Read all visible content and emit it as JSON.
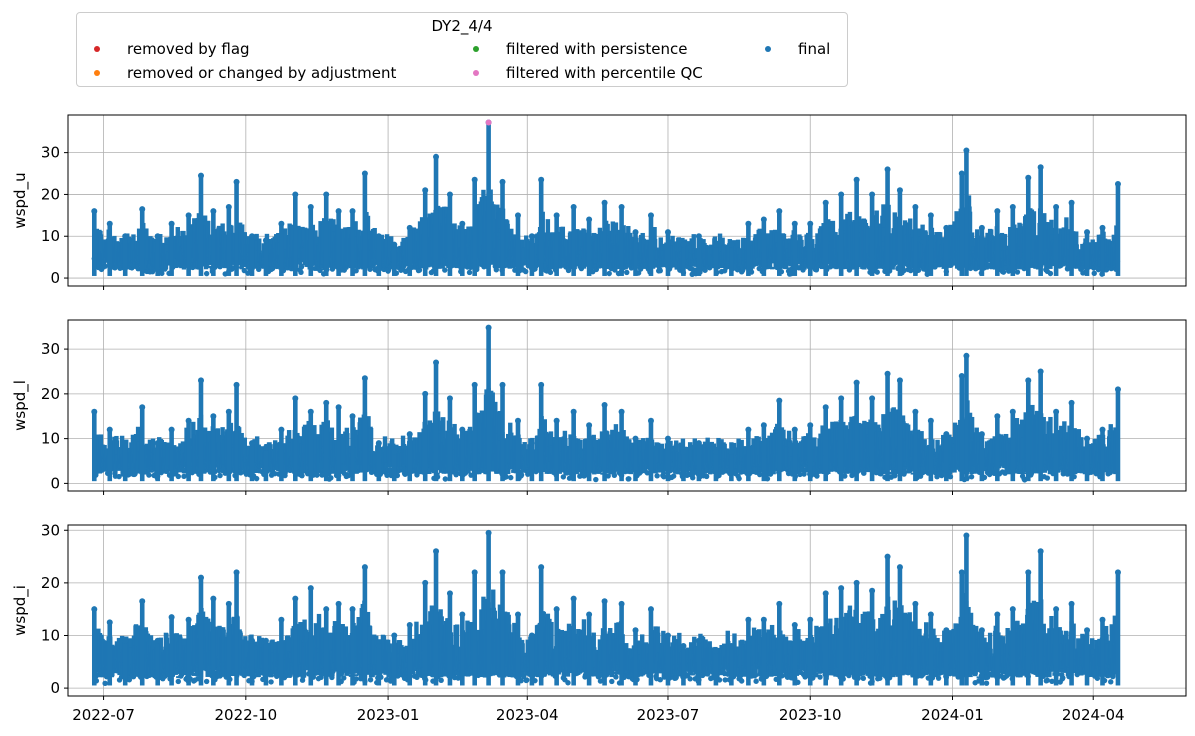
{
  "legend": {
    "title": "DY2_4/4",
    "items": [
      {
        "label": "removed by flag",
        "color": "#d62728"
      },
      {
        "label": "removed or changed by adjustment",
        "color": "#ff7f0e"
      },
      {
        "label": "filtered with persistence",
        "color": "#2ca02c"
      },
      {
        "label": "filtered with percentile QC",
        "color": "#e377c2"
      },
      {
        "label": "final",
        "color": "#1f77b4"
      }
    ]
  },
  "chart_data": [
    {
      "type": "scatter",
      "ylabel": "wspd_u",
      "xlim": [
        "2022-06-08",
        "2024-05-31"
      ],
      "ylim": [
        -1.9,
        39
      ],
      "yticks": [
        0,
        10,
        20,
        30
      ],
      "grid": true,
      "series": [
        {
          "name": "final",
          "color": "#1f77b4",
          "values": [
            [
              "2022-06-25",
              16
            ],
            [
              "2022-07-05",
              13
            ],
            [
              "2022-07-15",
              10
            ],
            [
              "2022-07-26",
              16.5
            ],
            [
              "2022-08-05",
              10
            ],
            [
              "2022-08-14",
              13
            ],
            [
              "2022-08-25",
              15
            ],
            [
              "2022-09-02",
              24.5
            ],
            [
              "2022-09-10",
              16
            ],
            [
              "2022-09-20",
              17
            ],
            [
              "2022-09-25",
              23
            ],
            [
              "2022-10-05",
              10
            ],
            [
              "2022-10-14",
              9
            ],
            [
              "2022-10-24",
              13
            ],
            [
              "2022-11-02",
              20
            ],
            [
              "2022-11-12",
              17
            ],
            [
              "2022-11-22",
              20
            ],
            [
              "2022-11-30",
              16
            ],
            [
              "2022-12-09",
              16
            ],
            [
              "2022-12-17",
              25
            ],
            [
              "2022-12-26",
              10
            ],
            [
              "2023-01-05",
              8
            ],
            [
              "2023-01-15",
              12
            ],
            [
              "2023-01-25",
              21
            ],
            [
              "2023-02-01",
              29
            ],
            [
              "2023-02-10",
              20
            ],
            [
              "2023-02-18",
              13
            ],
            [
              "2023-02-26",
              23.5
            ],
            [
              "2023-03-07",
              37.2
            ],
            [
              "2023-03-16",
              23
            ],
            [
              "2023-03-26",
              15
            ],
            [
              "2023-04-04",
              10
            ],
            [
              "2023-04-10",
              23.5
            ],
            [
              "2023-04-20",
              15
            ],
            [
              "2023-05-01",
              17
            ],
            [
              "2023-05-11",
              14
            ],
            [
              "2023-05-21",
              18
            ],
            [
              "2023-06-01",
              17
            ],
            [
              "2023-06-10",
              11
            ],
            [
              "2023-06-20",
              15
            ],
            [
              "2023-07-01",
              11
            ],
            [
              "2023-07-11",
              8
            ],
            [
              "2023-07-21",
              10
            ],
            [
              "2023-08-01",
              8
            ],
            [
              "2023-08-11",
              8
            ],
            [
              "2023-08-22",
              13
            ],
            [
              "2023-09-01",
              14
            ],
            [
              "2023-09-11",
              16
            ],
            [
              "2023-09-21",
              13
            ],
            [
              "2023-10-01",
              13
            ],
            [
              "2023-10-11",
              18
            ],
            [
              "2023-10-21",
              20
            ],
            [
              "2023-10-31",
              23.5
            ],
            [
              "2023-11-10",
              20
            ],
            [
              "2023-11-20",
              26
            ],
            [
              "2023-11-28",
              21
            ],
            [
              "2023-12-08",
              17
            ],
            [
              "2023-12-18",
              15
            ],
            [
              "2023-12-28",
              12
            ],
            [
              "2024-01-07",
              25
            ],
            [
              "2024-01-10",
              30.5
            ],
            [
              "2024-01-20",
              12
            ],
            [
              "2024-01-30",
              16
            ],
            [
              "2024-02-09",
              17
            ],
            [
              "2024-02-19",
              24
            ],
            [
              "2024-02-27",
              26.5
            ],
            [
              "2024-03-08",
              17
            ],
            [
              "2024-03-18",
              18
            ],
            [
              "2024-03-28",
              11
            ],
            [
              "2024-04-07",
              12
            ],
            [
              "2024-04-17",
              22.5
            ]
          ]
        },
        {
          "name": "filtered with percentile QC",
          "color": "#e377c2",
          "values": [
            [
              "2023-03-07",
              37.2
            ]
          ]
        }
      ]
    },
    {
      "type": "scatter",
      "ylabel": "wspd_l",
      "xlim": [
        "2022-06-08",
        "2024-05-31"
      ],
      "ylim": [
        -1.7,
        36.5
      ],
      "yticks": [
        0,
        10,
        20,
        30
      ],
      "grid": true,
      "series": [
        {
          "name": "final",
          "color": "#1f77b4",
          "values": [
            [
              "2022-06-25",
              16
            ],
            [
              "2022-07-05",
              12
            ],
            [
              "2022-07-15",
              9
            ],
            [
              "2022-07-26",
              17
            ],
            [
              "2022-08-05",
              9
            ],
            [
              "2022-08-14",
              12
            ],
            [
              "2022-08-25",
              14
            ],
            [
              "2022-09-02",
              23
            ],
            [
              "2022-09-10",
              15
            ],
            [
              "2022-09-20",
              16
            ],
            [
              "2022-09-25",
              22
            ],
            [
              "2022-10-05",
              9
            ],
            [
              "2022-10-14",
              8
            ],
            [
              "2022-10-24",
              12
            ],
            [
              "2022-11-02",
              19
            ],
            [
              "2022-11-12",
              16
            ],
            [
              "2022-11-22",
              18
            ],
            [
              "2022-11-30",
              17
            ],
            [
              "2022-12-09",
              15
            ],
            [
              "2022-12-17",
              23.5
            ],
            [
              "2022-12-26",
              9
            ],
            [
              "2023-01-05",
              7
            ],
            [
              "2023-01-15",
              11
            ],
            [
              "2023-01-25",
              20
            ],
            [
              "2023-02-01",
              27
            ],
            [
              "2023-02-10",
              19
            ],
            [
              "2023-02-18",
              12
            ],
            [
              "2023-02-26",
              22
            ],
            [
              "2023-03-07",
              34.8
            ],
            [
              "2023-03-16",
              22
            ],
            [
              "2023-03-26",
              14
            ],
            [
              "2023-04-04",
              9
            ],
            [
              "2023-04-10",
              22
            ],
            [
              "2023-04-20",
              14
            ],
            [
              "2023-05-01",
              16
            ],
            [
              "2023-05-11",
              13
            ],
            [
              "2023-05-21",
              17.5
            ],
            [
              "2023-06-01",
              16
            ],
            [
              "2023-06-10",
              10
            ],
            [
              "2023-06-20",
              14
            ],
            [
              "2023-07-01",
              10
            ],
            [
              "2023-07-11",
              7
            ],
            [
              "2023-07-21",
              9
            ],
            [
              "2023-08-01",
              7
            ],
            [
              "2023-08-11",
              7
            ],
            [
              "2023-08-22",
              12
            ],
            [
              "2023-09-01",
              13
            ],
            [
              "2023-09-11",
              18.5
            ],
            [
              "2023-09-21",
              12
            ],
            [
              "2023-10-01",
              13
            ],
            [
              "2023-10-11",
              17
            ],
            [
              "2023-10-21",
              19
            ],
            [
              "2023-10-31",
              22.5
            ],
            [
              "2023-11-10",
              19
            ],
            [
              "2023-11-20",
              24.5
            ],
            [
              "2023-11-28",
              23
            ],
            [
              "2023-12-08",
              16
            ],
            [
              "2023-12-18",
              14
            ],
            [
              "2023-12-28",
              11
            ],
            [
              "2024-01-07",
              24
            ],
            [
              "2024-01-10",
              28.5
            ],
            [
              "2024-01-20",
              11
            ],
            [
              "2024-01-30",
              15
            ],
            [
              "2024-02-09",
              16
            ],
            [
              "2024-02-19",
              23
            ],
            [
              "2024-02-27",
              25
            ],
            [
              "2024-03-08",
              16
            ],
            [
              "2024-03-18",
              18
            ],
            [
              "2024-03-28",
              10
            ],
            [
              "2024-04-07",
              12
            ],
            [
              "2024-04-17",
              21
            ]
          ]
        }
      ]
    },
    {
      "type": "scatter",
      "ylabel": "wspd_i",
      "xlim": [
        "2022-06-08",
        "2024-05-31"
      ],
      "ylim": [
        -1.5,
        31
      ],
      "yticks": [
        0,
        10,
        20,
        30
      ],
      "grid": true,
      "series": [
        {
          "name": "final",
          "color": "#1f77b4",
          "values": [
            [
              "2022-06-25",
              15
            ],
            [
              "2022-07-05",
              12.5
            ],
            [
              "2022-07-15",
              9
            ],
            [
              "2022-07-26",
              16.5
            ],
            [
              "2022-08-05",
              9
            ],
            [
              "2022-08-14",
              13.5
            ],
            [
              "2022-08-25",
              13
            ],
            [
              "2022-09-02",
              21
            ],
            [
              "2022-09-10",
              17
            ],
            [
              "2022-09-20",
              16
            ],
            [
              "2022-09-25",
              22
            ],
            [
              "2022-10-05",
              9
            ],
            [
              "2022-10-14",
              9
            ],
            [
              "2022-10-24",
              13
            ],
            [
              "2022-11-02",
              17
            ],
            [
              "2022-11-12",
              19
            ],
            [
              "2022-11-22",
              15
            ],
            [
              "2022-11-30",
              16
            ],
            [
              "2022-12-09",
              15
            ],
            [
              "2022-12-17",
              23
            ],
            [
              "2022-12-26",
              8
            ],
            [
              "2023-01-05",
              10
            ],
            [
              "2023-01-15",
              12
            ],
            [
              "2023-01-25",
              20
            ],
            [
              "2023-02-01",
              26
            ],
            [
              "2023-02-10",
              18
            ],
            [
              "2023-02-18",
              14
            ],
            [
              "2023-02-26",
              22
            ],
            [
              "2023-03-07",
              29.5
            ],
            [
              "2023-03-16",
              22
            ],
            [
              "2023-03-26",
              14
            ],
            [
              "2023-04-04",
              10
            ],
            [
              "2023-04-10",
              23
            ],
            [
              "2023-04-20",
              15
            ],
            [
              "2023-05-01",
              17
            ],
            [
              "2023-05-11",
              14
            ],
            [
              "2023-05-21",
              16.5
            ],
            [
              "2023-06-01",
              16
            ],
            [
              "2023-06-10",
              11
            ],
            [
              "2023-06-20",
              15
            ],
            [
              "2023-07-01",
              10
            ],
            [
              "2023-07-11",
              8
            ],
            [
              "2023-07-21",
              9
            ],
            [
              "2023-08-01",
              7
            ],
            [
              "2023-08-11",
              8
            ],
            [
              "2023-08-22",
              13
            ],
            [
              "2023-09-01",
              13
            ],
            [
              "2023-09-11",
              16
            ],
            [
              "2023-09-21",
              12
            ],
            [
              "2023-10-01",
              13
            ],
            [
              "2023-10-11",
              18
            ],
            [
              "2023-10-21",
              19
            ],
            [
              "2023-10-31",
              20
            ],
            [
              "2023-11-10",
              18.5
            ],
            [
              "2023-11-20",
              25
            ],
            [
              "2023-11-28",
              23
            ],
            [
              "2023-12-08",
              16
            ],
            [
              "2023-12-18",
              14
            ],
            [
              "2023-12-28",
              11
            ],
            [
              "2024-01-07",
              22
            ],
            [
              "2024-01-10",
              29
            ],
            [
              "2024-01-20",
              11
            ],
            [
              "2024-01-30",
              14
            ],
            [
              "2024-02-09",
              15
            ],
            [
              "2024-02-19",
              22
            ],
            [
              "2024-02-27",
              26
            ],
            [
              "2024-03-08",
              15
            ],
            [
              "2024-03-18",
              16
            ],
            [
              "2024-03-28",
              11
            ],
            [
              "2024-04-07",
              13
            ],
            [
              "2024-04-17",
              22
            ]
          ]
        }
      ]
    }
  ],
  "x_axis": {
    "ticks": [
      {
        "date": "2022-07-01",
        "label": "2022-07"
      },
      {
        "date": "2022-10-01",
        "label": "2022-10"
      },
      {
        "date": "2023-01-01",
        "label": "2023-01"
      },
      {
        "date": "2023-04-01",
        "label": "2023-04"
      },
      {
        "date": "2023-07-01",
        "label": "2023-07"
      },
      {
        "date": "2023-10-01",
        "label": "2023-10"
      },
      {
        "date": "2024-01-01",
        "label": "2024-01"
      },
      {
        "date": "2024-04-01",
        "label": "2024-04"
      }
    ]
  }
}
